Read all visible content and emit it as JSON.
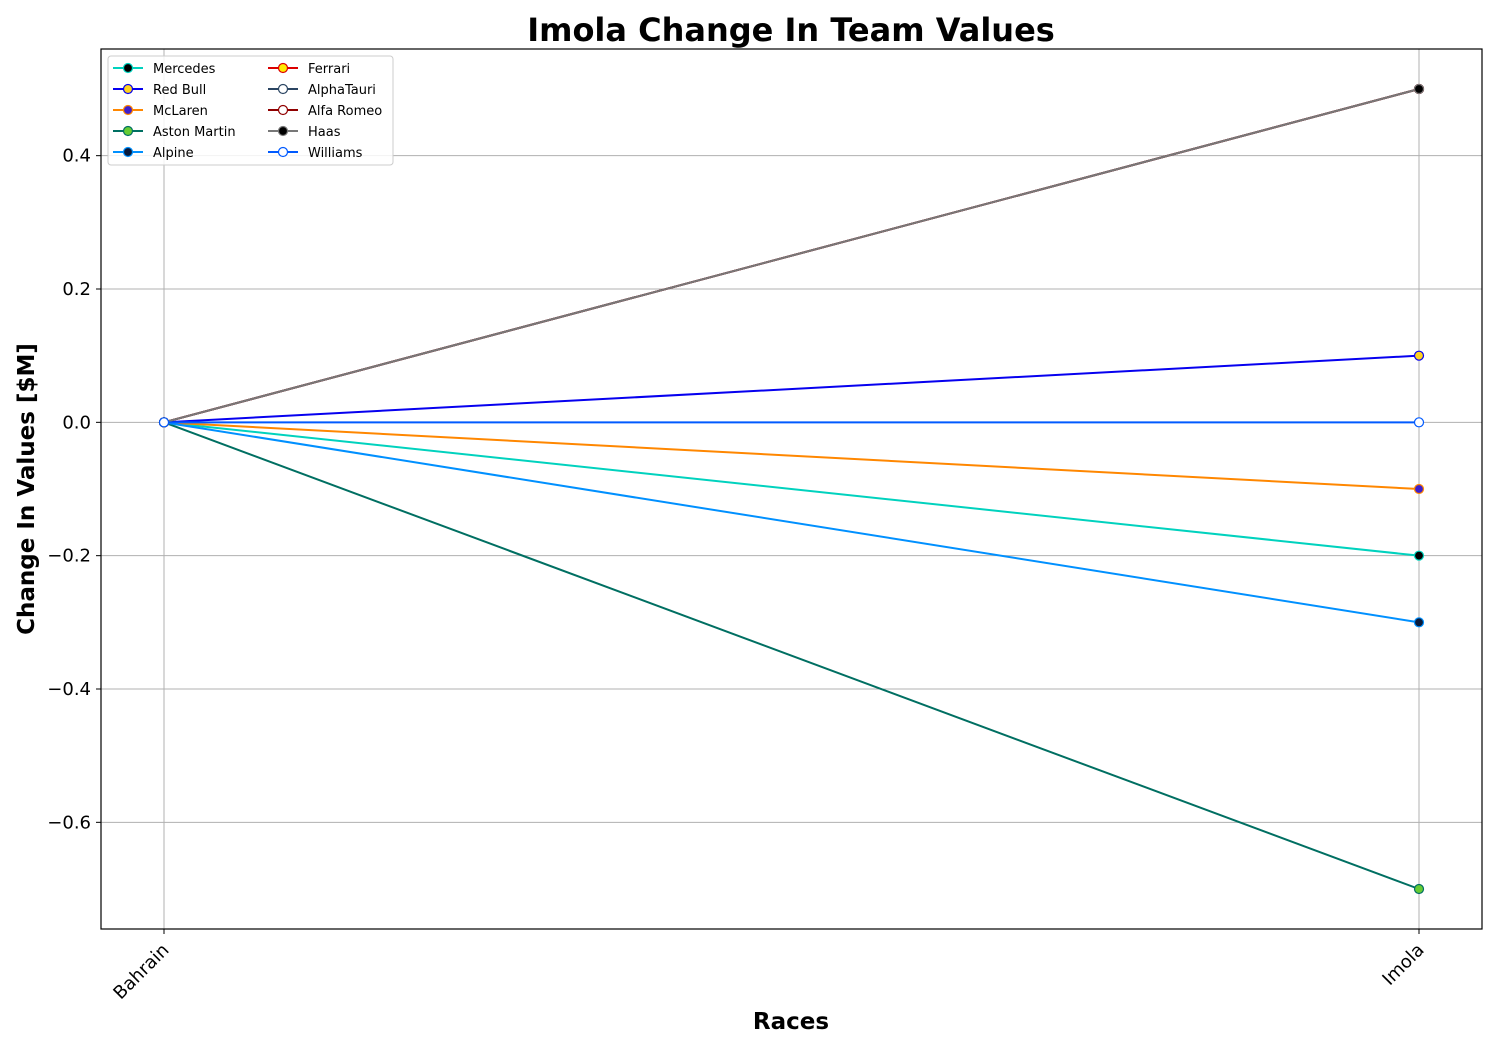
{
  "chart_data": {
    "type": "line",
    "title": "Imola Change In Team Values",
    "xlabel": "Races",
    "ylabel": "Change In Values [$M]",
    "categories": [
      "Bahrain",
      "Imola"
    ],
    "ylim": [
      -0.76,
      0.56
    ],
    "yticks": [
      -0.6,
      -0.4,
      -0.2,
      0.0,
      0.2,
      0.4
    ],
    "ytick_labels": [
      "−0.6",
      "−0.4",
      "−0.2",
      "0.0",
      "0.2",
      "0.4"
    ],
    "grid": true,
    "legend_position": "top-left",
    "legend_columns": 2,
    "series": [
      {
        "name": "Mercedes",
        "values": [
          0.0,
          -0.2
        ],
        "color": "#00D2BE",
        "marker_face": "#000000",
        "marker_edge": "#00D2BE"
      },
      {
        "name": "Red Bull",
        "values": [
          0.0,
          0.1
        ],
        "color": "#0600EF",
        "marker_face": "#FFD21E",
        "marker_edge": "#0600EF"
      },
      {
        "name": "McLaren",
        "values": [
          0.0,
          -0.1
        ],
        "color": "#FF8700",
        "marker_face": "#3D1FCC",
        "marker_edge": "#FF8700"
      },
      {
        "name": "Aston Martin",
        "values": [
          0.0,
          -0.7
        ],
        "color": "#006F62",
        "marker_face": "#66CC33",
        "marker_edge": "#006F62"
      },
      {
        "name": "Alpine",
        "values": [
          0.0,
          -0.3
        ],
        "color": "#0090FF",
        "marker_face": "#0A1A3A",
        "marker_edge": "#0090FF"
      },
      {
        "name": "Ferrari",
        "values": [
          0.0,
          0.5
        ],
        "color": "#DC0000",
        "marker_face": "#FFEB00",
        "marker_edge": "#DC0000"
      },
      {
        "name": "AlphaTauri",
        "values": [
          0.0,
          0.5
        ],
        "color": "#2B4562",
        "marker_face": "#FFFFFF",
        "marker_edge": "#2B4562"
      },
      {
        "name": "Alfa Romeo",
        "values": [
          0.0,
          0.5
        ],
        "color": "#900000",
        "marker_face": "#FFFFFF",
        "marker_edge": "#900000"
      },
      {
        "name": "Haas",
        "values": [
          0.0,
          0.5
        ],
        "color": "#787878",
        "marker_face": "#000000",
        "marker_edge": "#787878"
      },
      {
        "name": "Williams",
        "values": [
          0.0,
          0.0
        ],
        "color": "#005AFF",
        "marker_face": "#FFFFFF",
        "marker_edge": "#005AFF"
      }
    ]
  }
}
